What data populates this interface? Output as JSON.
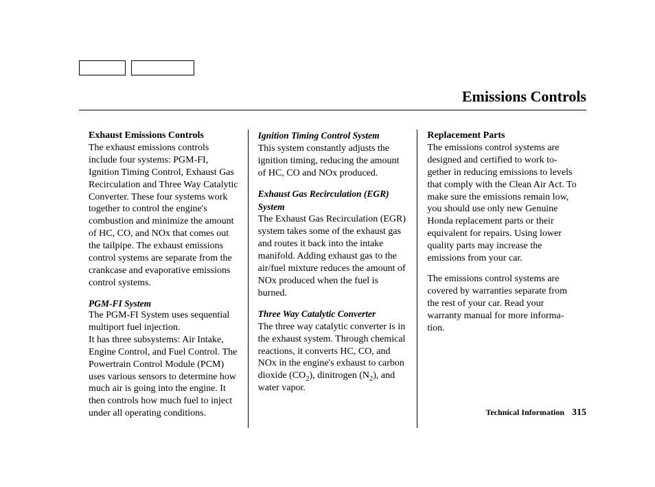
{
  "title": "Emissions Controls",
  "footer": {
    "label": "Technical Information",
    "page": "315"
  },
  "col1": {
    "h1": "Exhaust Emissions Controls",
    "p1": "The exhaust emissions controls include four systems: PGM-FI, Ignition Timing Control, Exhaust Gas Recirculation and Three Way Catalytic Converter. These four systems work together to control the engine's combustion and minimize the amount of HC, CO, and NOx that comes out the tailpipe. The exhaust emissions control systems are separate from the crankcase and evaporative emissions control systems.",
    "h2": "PGM-FI System",
    "p2a": "The PGM-FI System uses sequential multiport fuel injection.",
    "p2b": "It has three subsystems: Air Intake, Engine Control, and Fuel Control. The Powertrain Control Module (PCM) uses various sensors to determine how much air is going into the engine. It then controls how much fuel to inject under all operat­ing conditions."
  },
  "col2": {
    "h1": "Ignition Timing Control System",
    "p1": "This system constantly adjusts the ignition timing, reducing the amount of HC, CO and NOx produced.",
    "h2": "Exhaust Gas Recirculation (EGR) System",
    "p2": "The Exhaust Gas Recirculation (EGR) system takes some of the exhaust gas and routes it back into the intake manifold. Adding exhaust gas to the air/fuel mixture reduces the amount of NOx produced when the fuel is burned.",
    "h3": "Three Way Catalytic Converter",
    "p3a": "The three way catalytic converter is in the exhaust system. Through chemical reactions, it converts HC, CO, and NOx in the engine's exhaust to carbon dioxide (CO",
    "p3b": "), dinitrogen (N",
    "p3c": "), and water vapor."
  },
  "col3": {
    "h1": "Replacement Parts",
    "p1": "The emissions control systems are designed and certified to work to­gether in reducing emissions to levels that comply with the Clean Air Act. To make sure the emissions remain low, you should use only new Genuine Honda replacement parts or their equivalent for repairs. Using lower quality parts may increase the emissions from your car.",
    "p2": "The emissions control systems are covered by warranties separate from the rest of your car. Read your warranty manual for more informa­tion."
  }
}
